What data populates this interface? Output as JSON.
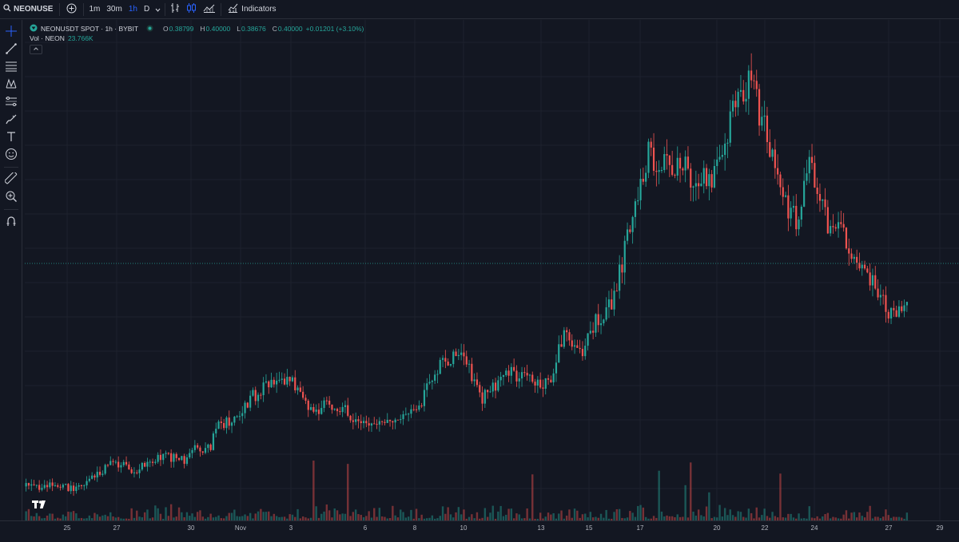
{
  "topbar": {
    "symbol": "NEONUSE",
    "add_symbol_icon": "plus-circle-icon",
    "intervals": [
      {
        "label": "1m",
        "active": false
      },
      {
        "label": "30m",
        "active": false
      },
      {
        "label": "1h",
        "active": true
      },
      {
        "label": "D",
        "active": false
      }
    ],
    "indicators_label": "Indicators"
  },
  "left_toolbar": {
    "tools": [
      "crosshair-icon",
      "trend-line-icon",
      "fib-retracement-icon",
      "pattern-icon",
      "prediction-icon",
      "brush-icon",
      "text-icon",
      "emoji-icon",
      "ruler-icon",
      "zoom-in-icon",
      "magnet-icon"
    ]
  },
  "legend": {
    "title": "NEONUSDT SPOT · 1h · BYBIT",
    "open_key": "O",
    "open": "0.38799",
    "high_key": "H",
    "high": "0.40000",
    "low_key": "L",
    "low": "0.38676",
    "close_key": "C",
    "close": "0.40000",
    "change": "+0.01201 (+3.10%)",
    "volume_label": "Vol · NEON",
    "volume_value": "23.766K"
  },
  "colors": {
    "up": "#26a69a",
    "down": "#ef5350",
    "accent": "#2962ff",
    "background": "#131722",
    "grid": "#1e222d"
  },
  "time_axis": {
    "labels": [
      "25",
      "27",
      "30",
      "Nov",
      "3",
      "6",
      "8",
      "10",
      "13",
      "15",
      "17",
      "20",
      "22",
      "24",
      "27",
      "29"
    ]
  },
  "chart_data": {
    "type": "candlestick",
    "symbol": "NEONUSDT",
    "interval": "1h",
    "price_keypoints_relative": [
      [
        0,
        0.13
      ],
      [
        0.04,
        0.13
      ],
      [
        0.06,
        0.12
      ],
      [
        0.08,
        0.16
      ],
      [
        0.1,
        0.21
      ],
      [
        0.13,
        0.19
      ],
      [
        0.16,
        0.24
      ],
      [
        0.19,
        0.22
      ],
      [
        0.2,
        0.26
      ],
      [
        0.22,
        0.28
      ],
      [
        0.23,
        0.35
      ],
      [
        0.25,
        0.38
      ],
      [
        0.27,
        0.45
      ],
      [
        0.3,
        0.53
      ],
      [
        0.32,
        0.49
      ],
      [
        0.34,
        0.39
      ],
      [
        0.36,
        0.43
      ],
      [
        0.38,
        0.4
      ],
      [
        0.41,
        0.34
      ],
      [
        0.44,
        0.35
      ],
      [
        0.47,
        0.44
      ],
      [
        0.49,
        0.56
      ],
      [
        0.52,
        0.61
      ],
      [
        0.54,
        0.44
      ],
      [
        0.57,
        0.53
      ],
      [
        0.6,
        0.52
      ],
      [
        0.62,
        0.49
      ],
      [
        0.64,
        0.67
      ],
      [
        0.66,
        0.61
      ],
      [
        0.68,
        0.73
      ],
      [
        0.7,
        0.81
      ],
      [
        0.72,
        1.1
      ],
      [
        0.74,
        1.32
      ],
      [
        0.76,
        1.26
      ],
      [
        0.78,
        1.27
      ],
      [
        0.8,
        1.21
      ],
      [
        0.82,
        1.24
      ],
      [
        0.84,
        1.48
      ],
      [
        0.86,
        1.58
      ],
      [
        0.88,
        1.38
      ],
      [
        0.9,
        1.13
      ],
      [
        0.92,
        1.06
      ],
      [
        0.93,
        1.3
      ],
      [
        0.95,
        1.08
      ],
      [
        0.97,
        1.02
      ],
      [
        0.99,
        0.9
      ],
      [
        1.0,
        0.87
      ],
      [
        1.02,
        0.79
      ],
      [
        1.03,
        0.73
      ],
      [
        1.05,
        0.77
      ]
    ],
    "last_price": 0.4,
    "grid": true
  }
}
